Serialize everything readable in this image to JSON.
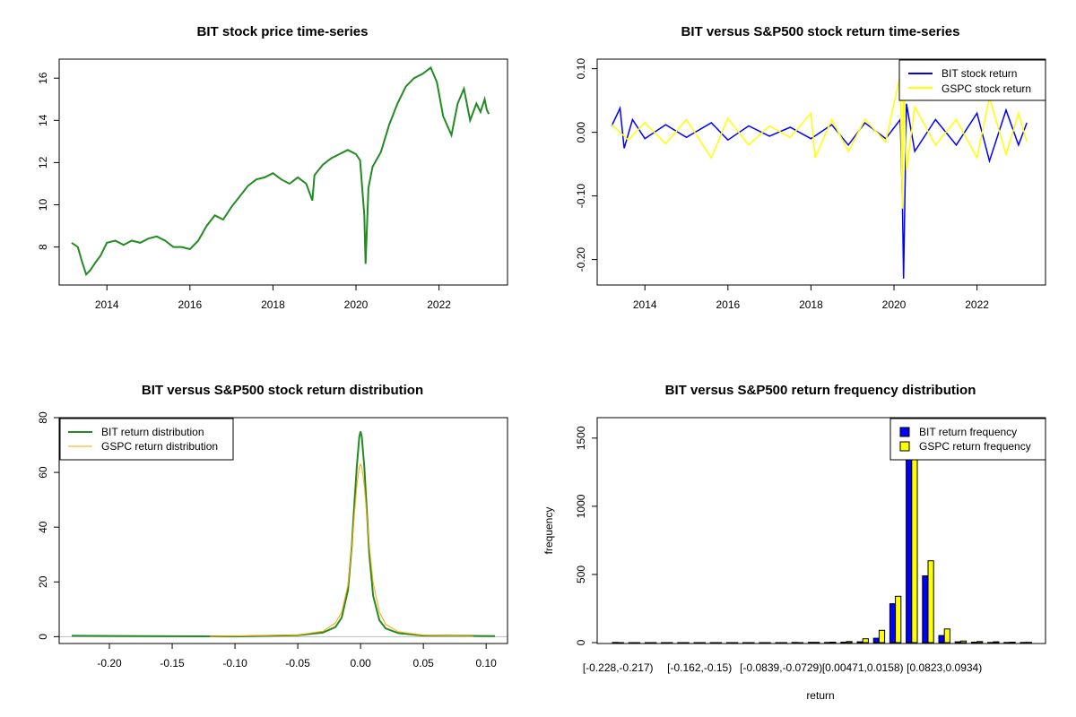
{
  "colors": {
    "bit_price": "#228B22",
    "bit_return": "#0000FF",
    "gspc_return": "#FFFF00",
    "gspc_density": "#FFA500",
    "bit_density": "#228B22",
    "zero_line": "#BEBEBE"
  },
  "chart_data": [
    {
      "type": "line",
      "title": "BIT stock price time-series",
      "xlabel": "",
      "ylabel": "",
      "xlim": [
        2012.85,
        2023.65
      ],
      "ylim": [
        6.2,
        16.9
      ],
      "x_ticks": [
        2014,
        2016,
        2018,
        2020,
        2022
      ],
      "x_tick_labels": [
        "2014",
        "2016",
        "2018",
        "2020",
        "2022"
      ],
      "y_ticks": [
        8,
        10,
        12,
        14,
        16
      ],
      "y_tick_labels": [
        "8",
        "10",
        "12",
        "14",
        "16"
      ],
      "grid": false,
      "series": [
        {
          "color": "#228B22",
          "x": [
            2013.15,
            2013.3,
            2013.4,
            2013.5,
            2013.6,
            2013.7,
            2013.85,
            2014.0,
            2014.2,
            2014.4,
            2014.6,
            2014.8,
            2015.0,
            2015.2,
            2015.4,
            2015.6,
            2015.8,
            2016.0,
            2016.2,
            2016.4,
            2016.6,
            2016.8,
            2017.0,
            2017.2,
            2017.4,
            2017.6,
            2017.8,
            2018.0,
            2018.2,
            2018.4,
            2018.6,
            2018.8,
            2018.95,
            2019.0,
            2019.2,
            2019.4,
            2019.6,
            2019.8,
            2020.0,
            2020.1,
            2020.2,
            2020.23,
            2020.3,
            2020.4,
            2020.6,
            2020.8,
            2021.0,
            2021.2,
            2021.4,
            2021.6,
            2021.8,
            2021.95,
            2022.1,
            2022.3,
            2022.45,
            2022.6,
            2022.75,
            2022.9,
            2023.0,
            2023.1,
            2023.15,
            2023.2
          ],
          "y": [
            8.2,
            8.0,
            7.3,
            6.7,
            6.9,
            7.2,
            7.6,
            8.2,
            8.3,
            8.1,
            8.3,
            8.2,
            8.4,
            8.5,
            8.3,
            8.0,
            8.0,
            7.9,
            8.3,
            9.0,
            9.5,
            9.3,
            9.9,
            10.4,
            10.9,
            11.2,
            11.3,
            11.5,
            11.2,
            11.0,
            11.3,
            11.0,
            10.2,
            11.4,
            11.9,
            12.2,
            12.4,
            12.6,
            12.4,
            12.1,
            9.5,
            7.2,
            10.8,
            11.8,
            12.5,
            13.8,
            14.8,
            15.6,
            16.0,
            16.2,
            16.5,
            15.8,
            14.2,
            13.3,
            14.8,
            15.5,
            14.0,
            14.8,
            14.4,
            15.0,
            14.5,
            14.3
          ]
        }
      ]
    },
    {
      "type": "line",
      "title": "BIT versus S&P500 stock return time-series",
      "xlabel": "",
      "ylabel": "",
      "xlim": [
        2012.85,
        2023.65
      ],
      "ylim": [
        -0.24,
        0.115
      ],
      "x_ticks": [
        2014,
        2016,
        2018,
        2020,
        2022
      ],
      "x_tick_labels": [
        "2014",
        "2016",
        "2018",
        "2020",
        "2022"
      ],
      "y_ticks": [
        -0.2,
        -0.1,
        0.0,
        0.1
      ],
      "y_tick_labels": [
        "-0.20",
        "-0.10",
        "0.00",
        "0.10"
      ],
      "grid": false,
      "legend_position": "top-right",
      "series": [
        {
          "name": "BIT stock return",
          "color": "#0000FF",
          "x": [
            2013.2,
            2013.4,
            2013.5,
            2013.7,
            2014.0,
            2014.5,
            2015.0,
            2015.6,
            2016.0,
            2016.5,
            2017.0,
            2017.5,
            2018.0,
            2018.5,
            2018.9,
            2019.3,
            2019.8,
            2020.15,
            2020.2,
            2020.23,
            2020.3,
            2020.5,
            2021.0,
            2021.5,
            2022.0,
            2022.3,
            2022.7,
            2023.0,
            2023.2
          ],
          "y": [
            0.01,
            0.038,
            -0.025,
            0.02,
            -0.01,
            0.012,
            -0.008,
            0.015,
            -0.012,
            0.01,
            -0.006,
            0.008,
            -0.01,
            0.012,
            -0.02,
            0.015,
            -0.01,
            0.02,
            -0.1,
            -0.23,
            0.045,
            -0.03,
            0.02,
            -0.02,
            0.03,
            -0.045,
            0.035,
            -0.02,
            0.015
          ]
        },
        {
          "name": "GSPC stock return",
          "color": "#FFFF00",
          "x": [
            2013.2,
            2013.6,
            2014.0,
            2014.5,
            2015.0,
            2015.6,
            2016.0,
            2016.5,
            2017.0,
            2017.5,
            2018.0,
            2018.1,
            2018.5,
            2018.9,
            2019.3,
            2019.8,
            2020.15,
            2020.2,
            2020.23,
            2020.3,
            2020.5,
            2021.0,
            2021.5,
            2022.0,
            2022.3,
            2022.7,
            2023.0,
            2023.2
          ],
          "y": [
            0.012,
            -0.012,
            0.015,
            -0.018,
            0.02,
            -0.04,
            0.022,
            -0.02,
            0.01,
            -0.008,
            0.03,
            -0.04,
            0.02,
            -0.03,
            0.02,
            -0.015,
            0.09,
            -0.12,
            0.095,
            -0.06,
            0.04,
            -0.02,
            0.02,
            -0.04,
            0.055,
            -0.035,
            0.03,
            -0.015
          ]
        }
      ]
    },
    {
      "type": "line",
      "title": "BIT versus S&P500 stock return distribution",
      "xlabel": "",
      "ylabel": "",
      "xlim": [
        -0.24,
        0.117
      ],
      "ylim": [
        -2.5,
        80
      ],
      "x_ticks": [
        -0.2,
        -0.15,
        -0.1,
        -0.05,
        0.0,
        0.05,
        0.1
      ],
      "x_tick_labels": [
        "-0.20",
        "-0.15",
        "-0.10",
        "-0.05",
        "0.00",
        "0.05",
        "0.10"
      ],
      "y_ticks": [
        0,
        20,
        40,
        60,
        80
      ],
      "y_tick_labels": [
        "0",
        "20",
        "40",
        "60",
        "80"
      ],
      "grid": false,
      "legend_position": "top-left",
      "series": [
        {
          "name": "BIT return distribution",
          "color": "#228B22",
          "x": [
            -0.23,
            -0.1,
            -0.05,
            -0.03,
            -0.02,
            -0.015,
            -0.01,
            -0.007,
            -0.005,
            -0.003,
            -0.001,
            0.0,
            0.001,
            0.003,
            0.005,
            0.007,
            0.01,
            0.015,
            0.02,
            0.03,
            0.05,
            0.107
          ],
          "y": [
            0.3,
            0.1,
            0.5,
            1.5,
            3.5,
            7,
            17,
            33,
            48,
            62,
            73,
            75,
            73,
            62,
            46,
            30,
            15,
            6,
            3,
            1.3,
            0.4,
            0.2
          ]
        },
        {
          "name": "GSPC return distribution",
          "color": "#FFA500",
          "x": [
            -0.12,
            -0.05,
            -0.03,
            -0.02,
            -0.015,
            -0.01,
            -0.007,
            -0.005,
            -0.003,
            -0.001,
            0.0,
            0.001,
            0.003,
            0.005,
            0.007,
            0.01,
            0.015,
            0.02,
            0.03,
            0.05,
            0.09
          ],
          "y": [
            0.1,
            0.6,
            2.0,
            5,
            9,
            19,
            33,
            44,
            55,
            62,
            63,
            62,
            55,
            44,
            33,
            20,
            9,
            4.5,
            1.8,
            0.5,
            0.1
          ]
        }
      ]
    },
    {
      "type": "bar",
      "title": "BIT versus S&P500 return frequency distribution",
      "xlabel": "return",
      "ylabel": "frequency",
      "ylim": [
        0,
        1650
      ],
      "y_ticks": [
        0,
        500,
        1000,
        1500
      ],
      "y_tick_labels": [
        "0",
        "500",
        "1000",
        "1500"
      ],
      "grid": false,
      "legend_position": "top-right",
      "categories": [
        "[-0.228,-0.217)",
        "",
        "",
        "",
        "",
        "[-0.162,-0.15)",
        "",
        "",
        "",
        "",
        "[-0.0839,-0.0729)",
        "",
        "",
        "",
        "",
        "[0.00471,0.0158)",
        "",
        "",
        "",
        "",
        "[0.0823,0.0934)",
        "",
        "",
        "",
        "",
        ""
      ],
      "series": [
        {
          "name": "BIT return frequency",
          "color": "#0000FF",
          "values": [
            1,
            0,
            0,
            0,
            0,
            0,
            0,
            0,
            0,
            0,
            0,
            1,
            2,
            1,
            3,
            6,
            32,
            285,
            1590,
            490,
            52,
            6,
            3,
            1,
            1,
            1
          ]
        },
        {
          "name": "GSPC return frequency",
          "color": "#FFFF00",
          "values": [
            0,
            0,
            0,
            0,
            0,
            0,
            0,
            0,
            0,
            0,
            0,
            0,
            2,
            3,
            8,
            28,
            90,
            340,
            1550,
            600,
            100,
            12,
            8,
            6,
            3,
            2
          ]
        }
      ]
    }
  ]
}
